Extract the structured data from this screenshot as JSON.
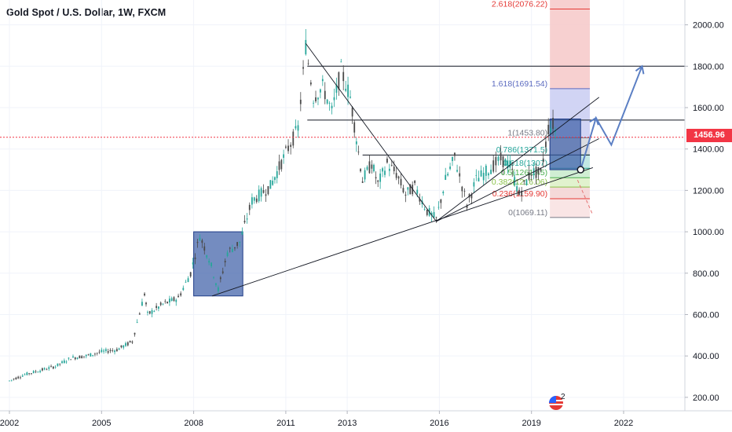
{
  "header": {
    "title": "Gold Spot / U.S. Dollar, 1W, FXCM"
  },
  "price_badge": "1456.96",
  "logo": {
    "icon": "flag-logo-icon",
    "badge_count": "2",
    "colors": [
      "#2962ff",
      "#e53935"
    ]
  },
  "colors": {
    "candle_up": "#26a69a",
    "candle_down": "#4a4a4a",
    "price_line": "#f23645",
    "box_fill": "#3f5fa8",
    "arrow": "#5b7fc4"
  },
  "chart_data": {
    "type": "candlestick",
    "symbol": "Gold Spot / U.S. Dollar",
    "interval": "1W",
    "source": "FXCM",
    "ylim": [
      135,
      2120
    ],
    "xlim": [
      2002,
      2024.2
    ],
    "y_ticks": [
      200,
      400,
      600,
      800,
      1000,
      1200,
      1400,
      1600,
      1800,
      2000
    ],
    "y_tick_labels": [
      "200.00",
      "400.00",
      "600.00",
      "800.00",
      "1000.00",
      "1200.00",
      "1400.00",
      "1600.00",
      "1800.00",
      "2000.00"
    ],
    "x_ticks": [
      2002,
      2005,
      2008,
      2011,
      2013,
      2016,
      2019,
      2022
    ],
    "x_tick_labels": [
      "2002",
      "2005",
      "2008",
      "2011",
      "2013",
      "2016",
      "2019",
      "2022"
    ],
    "last_price": 1456.96,
    "price_path": [
      [
        2002.0,
        280
      ],
      [
        2002.5,
        310
      ],
      [
        2003.0,
        330
      ],
      [
        2003.5,
        350
      ],
      [
        2004.0,
        390
      ],
      [
        2004.5,
        400
      ],
      [
        2005.0,
        420
      ],
      [
        2005.5,
        430
      ],
      [
        2006.0,
        470
      ],
      [
        2006.4,
        700
      ],
      [
        2006.5,
        600
      ],
      [
        2007.0,
        650
      ],
      [
        2007.5,
        680
      ],
      [
        2007.9,
        800
      ],
      [
        2008.2,
        980
      ],
      [
        2008.5,
        870
      ],
      [
        2008.8,
        720
      ],
      [
        2009.1,
        900
      ],
      [
        2009.5,
        950
      ],
      [
        2009.9,
        1150
      ],
      [
        2010.5,
        1220
      ],
      [
        2011.0,
        1380
      ],
      [
        2011.4,
        1500
      ],
      [
        2011.65,
        1900
      ],
      [
        2011.9,
        1650
      ],
      [
        2012.2,
        1700
      ],
      [
        2012.5,
        1580
      ],
      [
        2012.8,
        1780
      ],
      [
        2013.1,
        1650
      ],
      [
        2013.3,
        1450
      ],
      [
        2013.5,
        1250
      ],
      [
        2013.8,
        1330
      ],
      [
        2014.0,
        1230
      ],
      [
        2014.3,
        1330
      ],
      [
        2014.6,
        1280
      ],
      [
        2014.9,
        1180
      ],
      [
        2015.2,
        1220
      ],
      [
        2015.6,
        1100
      ],
      [
        2015.9,
        1060
      ],
      [
        2016.2,
        1250
      ],
      [
        2016.5,
        1360
      ],
      [
        2016.9,
        1130
      ],
      [
        2017.2,
        1250
      ],
      [
        2017.6,
        1300
      ],
      [
        2018.0,
        1350
      ],
      [
        2018.3,
        1320
      ],
      [
        2018.6,
        1180
      ],
      [
        2019.0,
        1290
      ],
      [
        2019.3,
        1280
      ],
      [
        2019.55,
        1500
      ],
      [
        2019.7,
        1520
      ],
      [
        2019.85,
        1457
      ]
    ],
    "fibonacci": [
      {
        "ratio": "2.618",
        "value": 2076.22,
        "label": "2.618(2076.22)",
        "color": "#e53935"
      },
      {
        "ratio": "1.618",
        "value": 1691.54,
        "label": "1.618(1691.54)",
        "color": "#5c6bc0"
      },
      {
        "ratio": "1",
        "value": 1453.8,
        "label": "1(1453.80)",
        "color": "#787b86"
      },
      {
        "ratio": "0.786",
        "value": 1371.5,
        "label": "0.786(1371.5)",
        "color": "#26a69a"
      },
      {
        "ratio": "0.618",
        "value": 1307,
        "label": "0.618(1307)",
        "color": "#26a69a"
      },
      {
        "ratio": "0.5",
        "value": 1261.45,
        "label": "0.5(1261.45)",
        "color": "#4caf50"
      },
      {
        "ratio": "0.382",
        "value": 1216.06,
        "label": "0.382(1216.06)",
        "color": "#8bc34a"
      },
      {
        "ratio": "0.236",
        "value": 1159.9,
        "label": "0.236(1159.90)",
        "color": "#e53935"
      },
      {
        "ratio": "0",
        "value": 1069.11,
        "label": "0(1069.11)",
        "color": "#787b86"
      }
    ],
    "horizontal_levels": [
      1800,
      1540,
      1371
    ],
    "boxes": [
      {
        "x0": 2008.0,
        "x1": 2009.6,
        "y0": 690,
        "y1": 1000
      },
      {
        "x0": 2019.6,
        "x1": 2020.6,
        "y0": 1300,
        "y1": 1545
      }
    ],
    "trendlines": [
      {
        "from": [
          2008.6,
          690
        ],
        "to": [
          2021.0,
          1310
        ]
      },
      {
        "from": [
          2015.9,
          1050
        ],
        "to": [
          2021.2,
          1650
        ]
      },
      {
        "from": [
          2015.9,
          1050
        ],
        "to": [
          2021.2,
          1450
        ]
      },
      {
        "from": [
          2011.65,
          1910
        ],
        "to": [
          2015.9,
          1050
        ]
      }
    ],
    "projection_arrow": [
      [
        2020.6,
        1300
      ],
      [
        2021.1,
        1550
      ],
      [
        2021.6,
        1420
      ],
      [
        2022.6,
        1800
      ]
    ]
  }
}
